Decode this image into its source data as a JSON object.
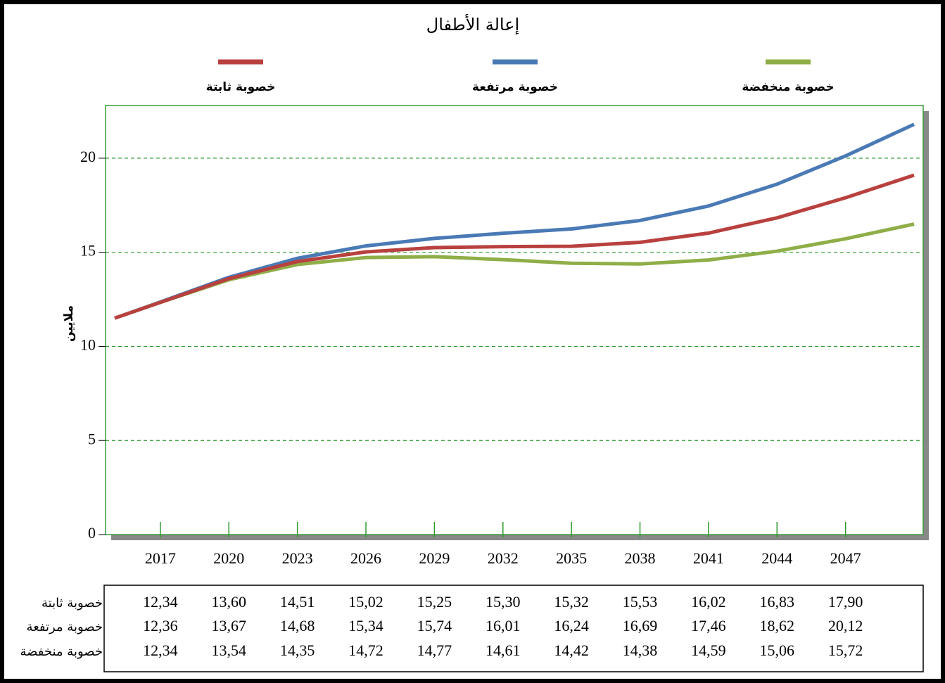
{
  "chart_data": {
    "type": "line",
    "title": "إعالة الأطفال",
    "ylabel": "ملايين",
    "x": [
      2015,
      2017,
      2020,
      2023,
      2026,
      2029,
      2032,
      2035,
      2038,
      2041,
      2044,
      2047,
      2050
    ],
    "series": [
      {
        "name": "خصوبة ثابتة",
        "color": "#b8413f",
        "values": [
          11.5,
          12.34,
          13.6,
          14.51,
          15.02,
          15.25,
          15.3,
          15.32,
          15.53,
          16.02,
          16.83,
          17.9,
          19.1
        ]
      },
      {
        "name": "خصوبة مرتفعة",
        "color": "#4a7ab5",
        "values": [
          11.5,
          12.36,
          13.67,
          14.68,
          15.34,
          15.74,
          16.01,
          16.24,
          16.69,
          17.46,
          18.62,
          20.12,
          21.8
        ]
      },
      {
        "name": "خصوبة منخفضة",
        "color": "#8fae48",
        "values": [
          11.5,
          12.34,
          13.54,
          14.35,
          14.72,
          14.77,
          14.61,
          14.42,
          14.38,
          14.59,
          15.06,
          15.72,
          16.5
        ]
      }
    ],
    "xlim": [
      2014.6,
      2050.4
    ],
    "xticks": [
      2017,
      2020,
      2023,
      2026,
      2029,
      2032,
      2035,
      2038,
      2041,
      2044,
      2047
    ],
    "ylim": [
      0,
      22.8
    ],
    "yticks": [
      0,
      5,
      10,
      15,
      20
    ],
    "grid": true
  },
  "table": {
    "rows": [
      {
        "name": "خصوبة ثابتة",
        "cells": [
          "12,34",
          "13,60",
          "14,51",
          "15,02",
          "15,25",
          "15,30",
          "15,32",
          "15,53",
          "16,02",
          "16,83",
          "17,90"
        ]
      },
      {
        "name": "خصوبة مرتفعة",
        "cells": [
          "12,36",
          "13,67",
          "14,68",
          "15,34",
          "15,74",
          "16,01",
          "16,24",
          "16,69",
          "17,46",
          "18,62",
          "20,12"
        ]
      },
      {
        "name": "خصوبة منخفضة",
        "cells": [
          "12,34",
          "13,54",
          "14,35",
          "14,72",
          "14,77",
          "14,61",
          "14,42",
          "14,38",
          "14,59",
          "15,06",
          "15,72"
        ]
      }
    ]
  }
}
